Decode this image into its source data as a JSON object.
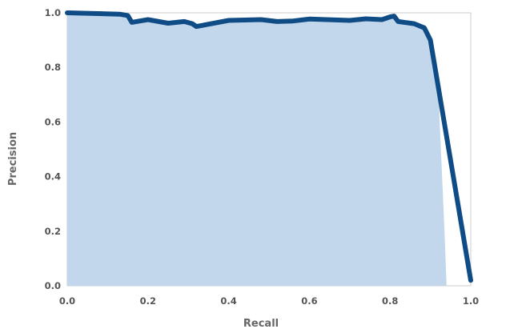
{
  "chart_data": {
    "type": "area",
    "title": "",
    "xlabel": "Recall",
    "ylabel": "Precision",
    "xlim": [
      0,
      1
    ],
    "ylim": [
      0,
      1
    ],
    "xticks": [
      "0.0",
      "0.2",
      "0.4",
      "0.6",
      "0.8",
      "1.0"
    ],
    "yticks": [
      "0.0",
      "0.2",
      "0.4",
      "0.6",
      "0.8",
      "1.0"
    ],
    "grid": false,
    "legend": "none",
    "colors": {
      "line": "#0f4c86",
      "fill": "#c2d7eb",
      "frame": "#cccccc",
      "text": "#555555"
    },
    "area_series": {
      "x": [
        0,
        0.13,
        0.15,
        0.16,
        0.2,
        0.25,
        0.29,
        0.31,
        0.32,
        0.4,
        0.48,
        0.52,
        0.56,
        0.6,
        0.7,
        0.74,
        0.78,
        0.8,
        0.81,
        0.82,
        0.86,
        0.885,
        0.9,
        0.92,
        0.935,
        0.94
      ],
      "y": [
        1.0,
        0.995,
        0.99,
        0.965,
        0.975,
        0.962,
        0.968,
        0.96,
        0.95,
        0.972,
        0.975,
        0.968,
        0.97,
        0.977,
        0.972,
        0.978,
        0.975,
        0.985,
        0.988,
        0.968,
        0.96,
        0.945,
        0.92,
        0.7,
        0.2,
        0.0
      ]
    },
    "line_series": {
      "x": [
        0,
        0.13,
        0.15,
        0.16,
        0.2,
        0.25,
        0.29,
        0.31,
        0.32,
        0.4,
        0.48,
        0.52,
        0.56,
        0.6,
        0.7,
        0.74,
        0.78,
        0.8,
        0.81,
        0.82,
        0.86,
        0.885,
        0.9,
        1.0
      ],
      "y": [
        1.0,
        0.995,
        0.99,
        0.965,
        0.975,
        0.962,
        0.968,
        0.96,
        0.95,
        0.972,
        0.975,
        0.968,
        0.97,
        0.977,
        0.972,
        0.978,
        0.975,
        0.985,
        0.988,
        0.968,
        0.96,
        0.945,
        0.9,
        0.02
      ]
    }
  }
}
